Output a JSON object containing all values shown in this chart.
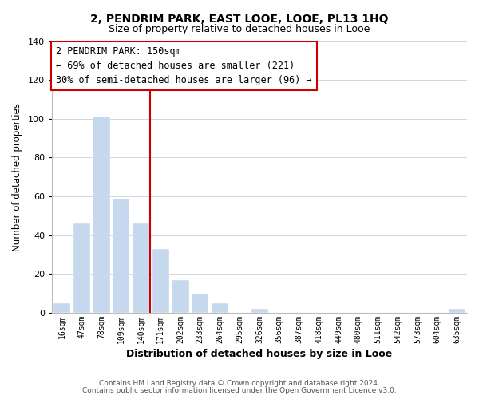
{
  "title_line1": "2, PENDRIM PARK, EAST LOOE, LOOE, PL13 1HQ",
  "title_line2": "Size of property relative to detached houses in Looe",
  "xlabel": "Distribution of detached houses by size in Looe",
  "ylabel": "Number of detached properties",
  "bar_labels": [
    "16sqm",
    "47sqm",
    "78sqm",
    "109sqm",
    "140sqm",
    "171sqm",
    "202sqm",
    "233sqm",
    "264sqm",
    "295sqm",
    "326sqm",
    "356sqm",
    "387sqm",
    "418sqm",
    "449sqm",
    "480sqm",
    "511sqm",
    "542sqm",
    "573sqm",
    "604sqm",
    "635sqm"
  ],
  "bar_values": [
    5,
    46,
    101,
    59,
    46,
    33,
    17,
    10,
    5,
    0,
    2,
    0,
    0,
    0,
    0,
    0,
    0,
    0,
    0,
    0,
    2
  ],
  "bar_color": "#c5d8ee",
  "vline_color": "#cc0000",
  "vline_index": 4,
  "annotation_line1": "2 PENDRIM PARK: 150sqm",
  "annotation_line2": "← 69% of detached houses are smaller (221)",
  "annotation_line3": "30% of semi-detached houses are larger (96) →",
  "box_edge_color": "#cc0000",
  "ylim": [
    0,
    140
  ],
  "yticks": [
    0,
    20,
    40,
    60,
    80,
    100,
    120,
    140
  ],
  "footer1": "Contains HM Land Registry data © Crown copyright and database right 2024.",
  "footer2": "Contains public sector information licensed under the Open Government Licence v3.0.",
  "background_color": "#ffffff",
  "grid_color": "#cdd8e3"
}
